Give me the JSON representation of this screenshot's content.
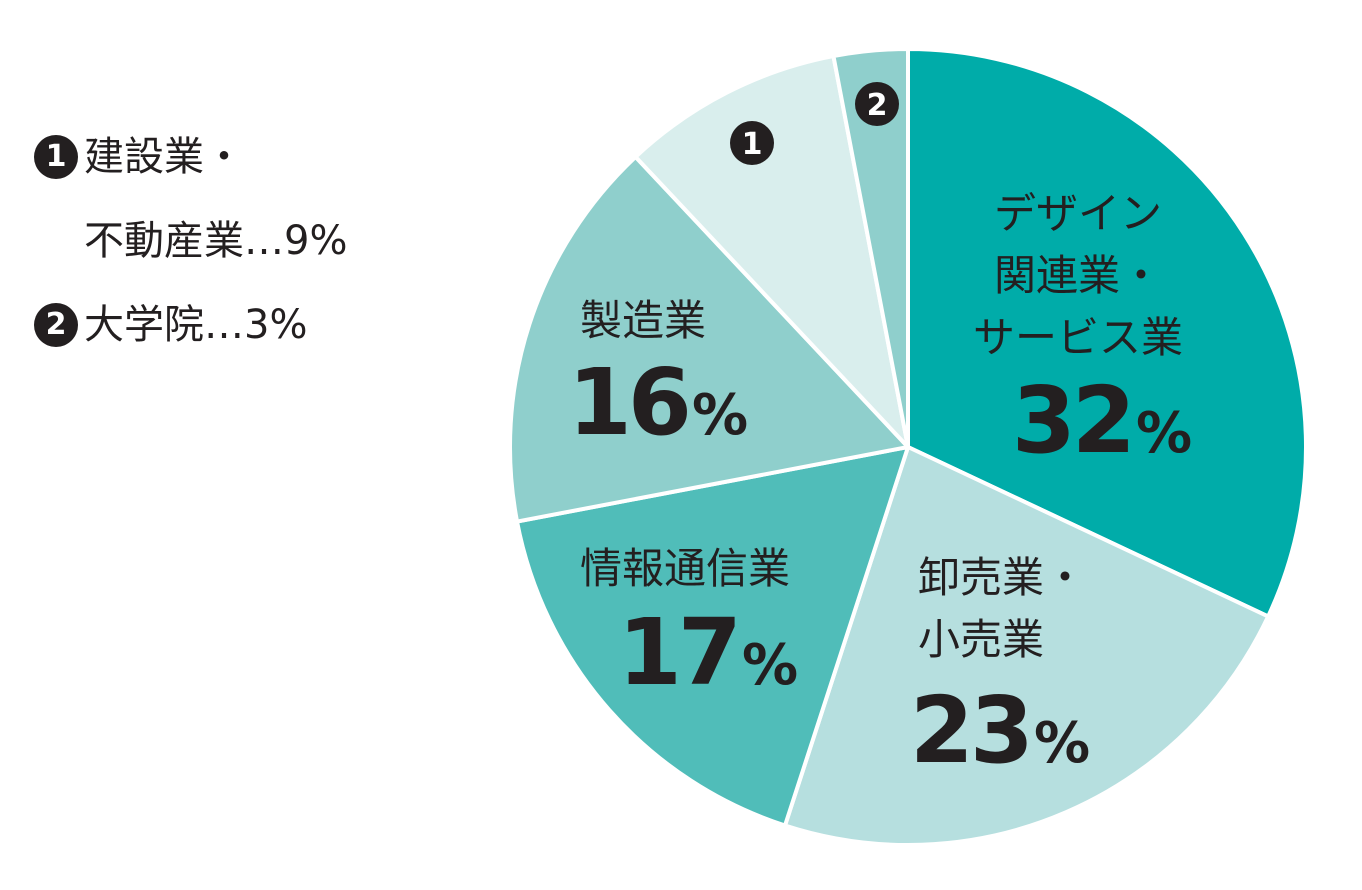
{
  "chart_data": {
    "type": "pie",
    "title": "",
    "slices": [
      {
        "key": "design",
        "label_lines": [
          "デザイン",
          "関連業・",
          "サービス業"
        ],
        "value": 32,
        "display": "32",
        "color": "#00aca9"
      },
      {
        "key": "wholesale",
        "label_lines": [
          "卸売業・",
          "小売業"
        ],
        "value": 23,
        "display": "23",
        "color": "#b6dfdf"
      },
      {
        "key": "it",
        "label_lines": [
          "情報通信業"
        ],
        "value": 17,
        "display": "17",
        "color": "#50bdb9"
      },
      {
        "key": "manufacturing",
        "label_lines": [
          "製造業"
        ],
        "value": 16,
        "display": "16",
        "color": "#8fcfcc"
      },
      {
        "key": "construction",
        "label_lines": [],
        "marker": "1",
        "value": 9,
        "display": "9",
        "color": "#d9eeed"
      },
      {
        "key": "university",
        "label_lines": [],
        "marker": "2",
        "value": 3,
        "display": "3",
        "color": "#8fcfcc"
      }
    ],
    "percent_sign": "%",
    "legend": [
      {
        "marker": "1",
        "line1": "建設業・",
        "line2": "不動産業…9%"
      },
      {
        "marker": "2",
        "line1": "大学院…3%"
      }
    ],
    "legend_position": "left",
    "grid": false
  }
}
